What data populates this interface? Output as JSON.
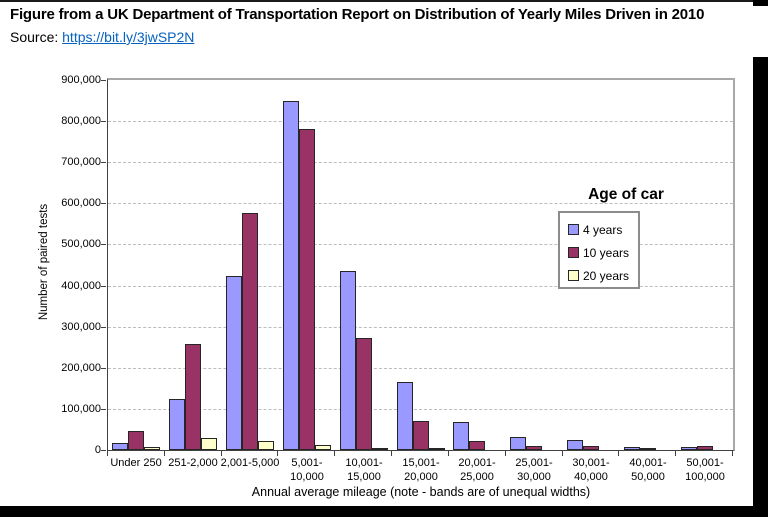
{
  "header": {
    "title": "Figure from a UK Department of Transportation Report on Distribution of Yearly Miles Driven in 2010",
    "source_label": "Source:",
    "source_url": "https://bit.ly/3jwSP2N"
  },
  "chart_data": {
    "type": "bar",
    "categories": [
      "Under 250",
      "251-2,000",
      "2,001-5,000",
      "5,001-\n10,000",
      "10,001-\n15,000",
      "15,001-\n20,000",
      "20,001-\n25,000",
      "25,001-\n30,000",
      "30,001-\n40,000",
      "40,001-\n50,000",
      "50,001-\n100,000"
    ],
    "series": [
      {
        "name": "4 years",
        "color": "#9999FF",
        "values": [
          17000,
          125000,
          423000,
          848000,
          436000,
          165000,
          67000,
          32000,
          24000,
          8000,
          8000
        ]
      },
      {
        "name": "10 years",
        "color": "#993366",
        "values": [
          47000,
          259000,
          577000,
          781000,
          272000,
          71000,
          23000,
          10000,
          9000,
          3000,
          9000
        ]
      },
      {
        "name": "20 years",
        "color": "#FFFFCC",
        "values": [
          8000,
          28000,
          22000,
          13000,
          4000,
          2000,
          0,
          0,
          0,
          0,
          0
        ]
      }
    ],
    "ylabel": "Number of paired tests",
    "xlabel": "Annual average mileage (note - bands are of unequal widths)",
    "ylim": [
      0,
      900000
    ],
    "ytick_step": 100000,
    "legend_title": "Age of car",
    "legend_position": "right-inside",
    "grid": "horizontal-dashed"
  },
  "colors": {
    "link": "#0563C1",
    "axis": "#404040",
    "grid": "#bdbdbd",
    "plot_border": "#a8a8a8",
    "bar_border": "#262626",
    "frame": "#000000"
  }
}
